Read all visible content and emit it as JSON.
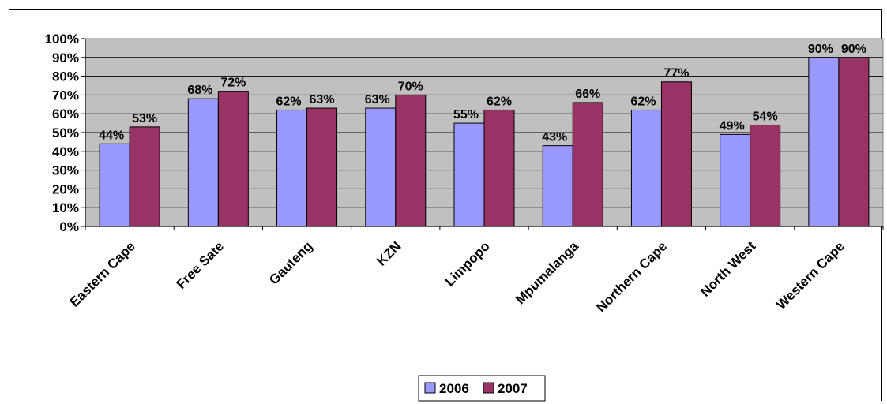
{
  "chart_data": {
    "type": "bar",
    "title": "",
    "xlabel": "",
    "ylabel": "",
    "ylim": [
      0,
      100
    ],
    "y_ticks": [
      "0%",
      "10%",
      "20%",
      "30%",
      "40%",
      "50%",
      "60%",
      "70%",
      "80%",
      "90%",
      "100%"
    ],
    "grid": true,
    "legend_position": "bottom",
    "plot_background": "#c0c0c0",
    "categories": [
      "Eastern Cape",
      "Free Sate",
      "Gauteng",
      "KZN",
      "Limpopo",
      "Mpumalanga",
      "Northern Cape",
      "North West",
      "Western Cape"
    ],
    "series": [
      {
        "name": "2006",
        "color": "#9999ff",
        "values": [
          44,
          68,
          62,
          63,
          55,
          43,
          62,
          49,
          90
        ],
        "labels": [
          "44%",
          "68%",
          "62%",
          "63%",
          "55%",
          "43%",
          "62%",
          "49%",
          "90%"
        ]
      },
      {
        "name": "2007",
        "color": "#993366",
        "values": [
          53,
          72,
          63,
          70,
          62,
          66,
          77,
          54,
          90
        ],
        "labels": [
          "53%",
          "72%",
          "63%",
          "70%",
          "62%",
          "66%",
          "77%",
          "54%",
          "90%"
        ]
      }
    ]
  }
}
